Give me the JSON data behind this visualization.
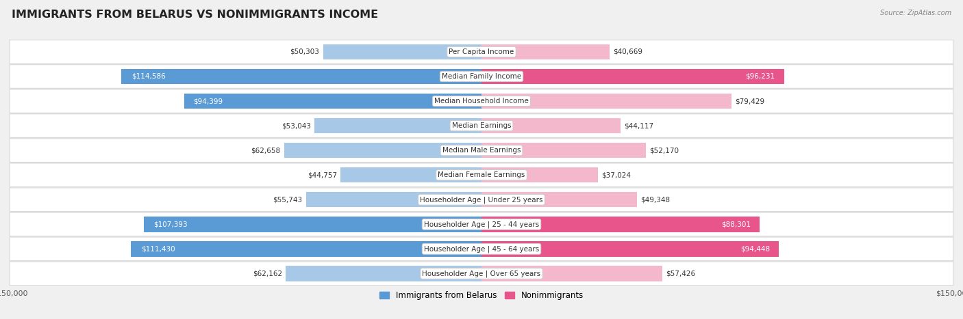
{
  "title": "IMMIGRANTS FROM BELARUS VS NONIMMIGRANTS INCOME",
  "source": "Source: ZipAtlas.com",
  "categories": [
    "Per Capita Income",
    "Median Family Income",
    "Median Household Income",
    "Median Earnings",
    "Median Male Earnings",
    "Median Female Earnings",
    "Householder Age | Under 25 years",
    "Householder Age | 25 - 44 years",
    "Householder Age | 45 - 64 years",
    "Householder Age | Over 65 years"
  ],
  "immigrants": [
    50303,
    114586,
    94399,
    53043,
    62658,
    44757,
    55743,
    107393,
    111430,
    62162
  ],
  "nonimmigrants": [
    40669,
    96231,
    79429,
    44117,
    52170,
    37024,
    49348,
    88301,
    94448,
    57426
  ],
  "immigrant_labels": [
    "$50,303",
    "$114,586",
    "$94,399",
    "$53,043",
    "$62,658",
    "$44,757",
    "$55,743",
    "$107,393",
    "$111,430",
    "$62,162"
  ],
  "nonimmigrant_labels": [
    "$40,669",
    "$96,231",
    "$79,429",
    "$44,117",
    "$52,170",
    "$37,024",
    "$49,348",
    "$88,301",
    "$94,448",
    "$57,426"
  ],
  "immigrant_color_light": "#a8c8e8",
  "immigrant_color_dark": "#5b9bd5",
  "nonimmigrant_color_light": "#f4b8cc",
  "nonimmigrant_color_dark": "#e8558a",
  "imm_dark_threshold": 80000,
  "non_dark_threshold": 80000,
  "max_value": 150000,
  "bg_color": "#f0f0f0",
  "row_bg_color": "#ffffff",
  "title_fontsize": 11.5,
  "label_fontsize": 7.5,
  "category_fontsize": 7.5,
  "legend_fontsize": 8.5,
  "axis_label_fontsize": 8
}
